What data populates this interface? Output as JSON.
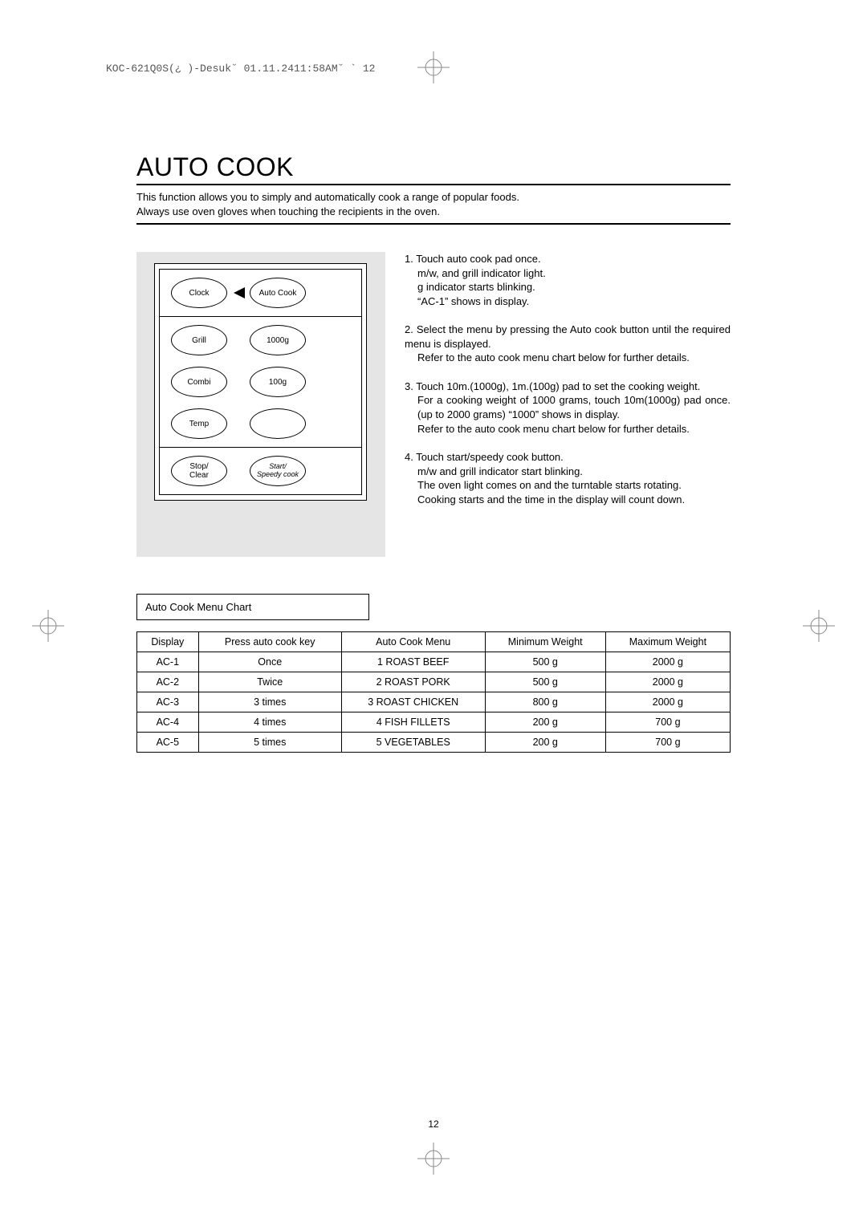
{
  "header_line": "KOC-621Q0S(¿ )-Desuk˘ 01.11.2411:58AM˘  `  12",
  "title": "AUTO COOK",
  "intro_line1": "This function allows you to simply and automatically cook a range of popular foods.",
  "intro_line2": "Always use oven gloves when touching the recipients in the oven.",
  "panel": {
    "clock": "Clock",
    "autocook": "Auto Cook",
    "grill": "Grill",
    "w1000": "1000g",
    "combi": "Combi",
    "w100": "100g",
    "temp": "Temp",
    "stop": "Stop/\nClear",
    "start": "Start/\nSpeedy cook"
  },
  "steps": {
    "s1a": "1. Touch auto cook  pad once.",
    "s1b": "m/w, and grill  indicator light.",
    "s1c": "g indicator starts blinking.",
    "s1d": "“AC-1” shows in display.",
    "s2a": "2. Select the menu by pressing the Auto cook button until the required menu is displayed.",
    "s2b": "Refer to the auto cook menu chart below for further details.",
    "s3a": "3. Touch 10m.(1000g), 1m.(100g) pad to set the cooking weight.",
    "s3b": "For a cooking weight of 1000 grams, touch 10m(1000g) pad once. (up to 2000 grams) “1000” shows in display.",
    "s3c": "Refer to the auto cook menu chart below for further details.",
    "s4a": "4. Touch start/speedy cook   button.",
    "s4b": "m/w and grill  indicator start blinking.",
    "s4c": "The oven light comes on and the turntable starts rotating.",
    "s4d": "Cooking starts and the time in the display will count down."
  },
  "chart_label": "Auto Cook Menu Chart",
  "table": {
    "columns": [
      "Display",
      "Press auto cook key",
      "Auto Cook Menu",
      "Minimum Weight",
      "Maximum Weight"
    ],
    "rows": [
      [
        "AC-1",
        "Once",
        "1 ROAST BEEF",
        "500 g",
        "2000 g"
      ],
      [
        "AC-2",
        "Twice",
        "2 ROAST PORK",
        "500 g",
        "2000 g"
      ],
      [
        "AC-3",
        "3 times",
        "3 ROAST CHICKEN",
        "800 g",
        "2000 g"
      ],
      [
        "AC-4",
        "4 times",
        "4 FISH FILLETS",
        "200 g",
        "700 g"
      ],
      [
        "AC-5",
        "5 times",
        "5 VEGETABLES",
        "200 g",
        "700 g"
      ]
    ]
  },
  "page_number": "12"
}
